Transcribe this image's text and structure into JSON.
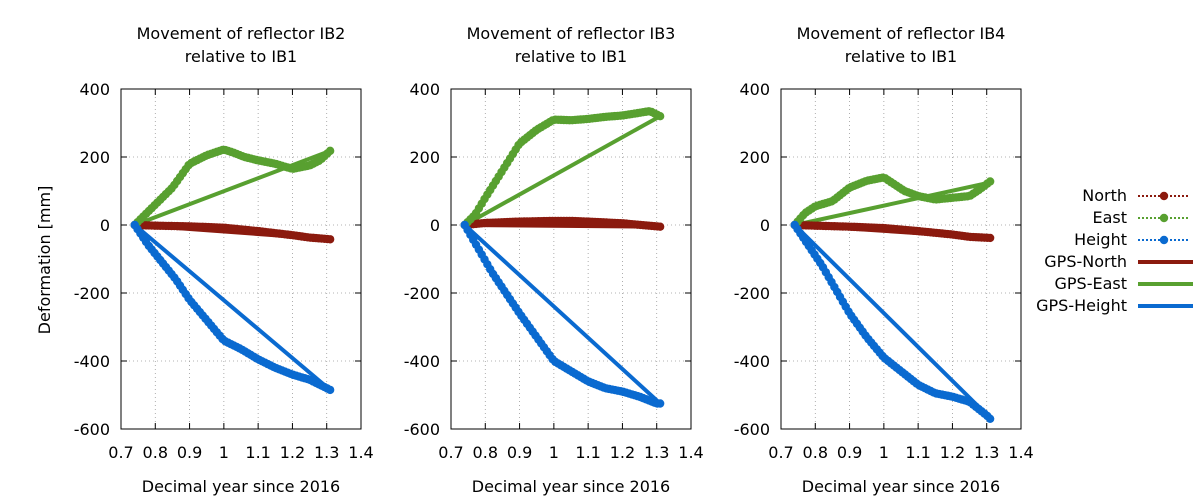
{
  "ylabel": "Deformation [mm]",
  "colors": {
    "north": "#8B1A0E",
    "east": "#58A030",
    "height": "#0A6AD0",
    "grid": "#9a9a9a"
  },
  "legend": [
    {
      "label": "North",
      "series": "north",
      "style": "points"
    },
    {
      "label": "East",
      "series": "east",
      "style": "points"
    },
    {
      "label": "Height",
      "series": "height",
      "style": "points"
    },
    {
      "label": "GPS-North",
      "series": "north",
      "style": "line"
    },
    {
      "label": "GPS-East",
      "series": "east",
      "style": "line"
    },
    {
      "label": "GPS-Height",
      "series": "height",
      "style": "line"
    }
  ],
  "chart_data": [
    {
      "type": "scatter",
      "title": [
        "Movement of reflector IB2",
        "relative to IB1"
      ],
      "xlabel": "Decimal year since 2016",
      "ylabel": "Deformation [mm]",
      "xlim": [
        0.7,
        1.4
      ],
      "ylim": [
        -600,
        400
      ],
      "xticks": [
        0.7,
        0.8,
        0.9,
        1,
        1.1,
        1.2,
        1.3,
        1.4
      ],
      "xtick_labels": [
        "0.7",
        "0.8",
        "0.9",
        "1",
        "1.1",
        "1.2",
        "1.3",
        "1.4"
      ],
      "yticks": [
        400,
        200,
        0,
        -200,
        -400,
        -600
      ],
      "ytick_labels": [
        "400",
        "200",
        "0",
        "-200",
        "-400",
        "-600"
      ],
      "grid": true,
      "series": [
        {
          "name": "North",
          "key": "north",
          "style": "points",
          "x": [
            0.74,
            0.8,
            0.9,
            1.0,
            1.1,
            1.2,
            1.25,
            1.31
          ],
          "y": [
            0,
            -2,
            -4,
            -8,
            -18,
            -30,
            -37,
            -42
          ]
        },
        {
          "name": "East",
          "key": "east",
          "style": "points",
          "x": [
            0.74,
            0.76,
            0.8,
            0.85,
            0.9,
            0.95,
            1.0,
            1.03,
            1.06,
            1.1,
            1.15,
            1.2,
            1.25,
            1.28,
            1.31
          ],
          "y": [
            0,
            20,
            60,
            110,
            180,
            205,
            222,
            212,
            200,
            190,
            180,
            165,
            175,
            190,
            218
          ]
        },
        {
          "name": "Height",
          "key": "height",
          "style": "points",
          "x": [
            0.74,
            0.78,
            0.82,
            0.86,
            0.9,
            0.95,
            1.0,
            1.05,
            1.1,
            1.15,
            1.2,
            1.25,
            1.31
          ],
          "y": [
            0,
            -60,
            -110,
            -160,
            -220,
            -280,
            -340,
            -365,
            -395,
            -420,
            -440,
            -455,
            -485
          ]
        },
        {
          "name": "GPS-North",
          "key": "north",
          "style": "line",
          "x": [
            0.74,
            1.31
          ],
          "y": [
            0,
            -42
          ]
        },
        {
          "name": "GPS-East",
          "key": "east",
          "style": "line",
          "x": [
            0.74,
            1.31
          ],
          "y": [
            0,
            218
          ]
        },
        {
          "name": "GPS-Height",
          "key": "height",
          "style": "line",
          "x": [
            0.74,
            1.31
          ],
          "y": [
            0,
            -485
          ]
        }
      ]
    },
    {
      "type": "scatter",
      "title": [
        "Movement of reflector IB3",
        "relative to IB1"
      ],
      "xlabel": "Decimal year since 2016",
      "ylabel": "",
      "xlim": [
        0.7,
        1.4
      ],
      "ylim": [
        -600,
        400
      ],
      "xticks": [
        0.7,
        0.8,
        0.9,
        1,
        1.1,
        1.2,
        1.3,
        1.4
      ],
      "xtick_labels": [
        "0.7",
        "0.8",
        "0.9",
        "1",
        "1.1",
        "1.2",
        "1.3",
        "1.4"
      ],
      "yticks": [
        400,
        200,
        0,
        -200,
        -400,
        -600
      ],
      "ytick_labels": [
        "400",
        "200",
        "0",
        "-200",
        "-400",
        "-600"
      ],
      "grid": true,
      "series": [
        {
          "name": "North",
          "key": "north",
          "style": "points",
          "x": [
            0.74,
            0.8,
            0.9,
            1.0,
            1.05,
            1.1,
            1.2,
            1.31
          ],
          "y": [
            0,
            6,
            10,
            12,
            12,
            10,
            5,
            -5
          ]
        },
        {
          "name": "East",
          "key": "east",
          "style": "points",
          "x": [
            0.74,
            0.77,
            0.8,
            0.85,
            0.9,
            0.95,
            1.0,
            1.05,
            1.1,
            1.15,
            1.2,
            1.25,
            1.28,
            1.31
          ],
          "y": [
            0,
            30,
            80,
            160,
            240,
            280,
            310,
            308,
            312,
            318,
            322,
            330,
            335,
            320
          ]
        },
        {
          "name": "Height",
          "key": "height",
          "style": "points",
          "x": [
            0.74,
            0.78,
            0.82,
            0.86,
            0.9,
            0.95,
            1.0,
            1.05,
            1.1,
            1.15,
            1.2,
            1.25,
            1.3,
            1.31
          ],
          "y": [
            0,
            -70,
            -140,
            -200,
            -260,
            -330,
            -400,
            -430,
            -460,
            -480,
            -490,
            -505,
            -525,
            -525
          ]
        },
        {
          "name": "GPS-North",
          "key": "north",
          "style": "line",
          "x": [
            0.74,
            1.31
          ],
          "y": [
            0,
            -5
          ]
        },
        {
          "name": "GPS-East",
          "key": "east",
          "style": "line",
          "x": [
            0.74,
            1.31
          ],
          "y": [
            0,
            320
          ]
        },
        {
          "name": "GPS-Height",
          "key": "height",
          "style": "line",
          "x": [
            0.74,
            1.31
          ],
          "y": [
            0,
            -525
          ]
        }
      ]
    },
    {
      "type": "scatter",
      "title": [
        "Movement of reflector IB4",
        "relative to IB1"
      ],
      "xlabel": "Decimal year since 2016",
      "ylabel": "",
      "xlim": [
        0.7,
        1.4
      ],
      "ylim": [
        -600,
        400
      ],
      "xticks": [
        0.7,
        0.8,
        0.9,
        1,
        1.1,
        1.2,
        1.3,
        1.4
      ],
      "xtick_labels": [
        "0.7",
        "0.8",
        "0.9",
        "1",
        "1.1",
        "1.2",
        "1.3",
        "1.4"
      ],
      "yticks": [
        400,
        200,
        0,
        -200,
        -400,
        -600
      ],
      "ytick_labels": [
        "400",
        "200",
        "0",
        "-200",
        "-400",
        "-600"
      ],
      "grid": true,
      "series": [
        {
          "name": "North",
          "key": "north",
          "style": "points",
          "x": [
            0.74,
            0.8,
            0.9,
            1.0,
            1.1,
            1.2,
            1.25,
            1.31
          ],
          "y": [
            0,
            -2,
            -5,
            -9,
            -18,
            -28,
            -35,
            -38
          ]
        },
        {
          "name": "East",
          "key": "east",
          "style": "points",
          "x": [
            0.74,
            0.77,
            0.8,
            0.85,
            0.9,
            0.95,
            1.0,
            1.03,
            1.06,
            1.1,
            1.15,
            1.2,
            1.25,
            1.28,
            1.31
          ],
          "y": [
            0,
            35,
            55,
            70,
            110,
            130,
            140,
            120,
            100,
            85,
            75,
            80,
            85,
            105,
            128
          ]
        },
        {
          "name": "Height",
          "key": "height",
          "style": "points",
          "x": [
            0.74,
            0.78,
            0.82,
            0.86,
            0.9,
            0.95,
            1.0,
            1.05,
            1.1,
            1.15,
            1.2,
            1.25,
            1.3,
            1.31
          ],
          "y": [
            0,
            -60,
            -120,
            -190,
            -260,
            -330,
            -390,
            -430,
            -470,
            -495,
            -505,
            -520,
            -560,
            -570
          ]
        },
        {
          "name": "GPS-North",
          "key": "north",
          "style": "line",
          "x": [
            0.74,
            1.31
          ],
          "y": [
            0,
            -38
          ]
        },
        {
          "name": "GPS-East",
          "key": "east",
          "style": "line",
          "x": [
            0.74,
            1.31
          ],
          "y": [
            0,
            125
          ]
        },
        {
          "name": "GPS-Height",
          "key": "height",
          "style": "line",
          "x": [
            0.74,
            1.31
          ],
          "y": [
            0,
            -568
          ]
        }
      ]
    }
  ]
}
